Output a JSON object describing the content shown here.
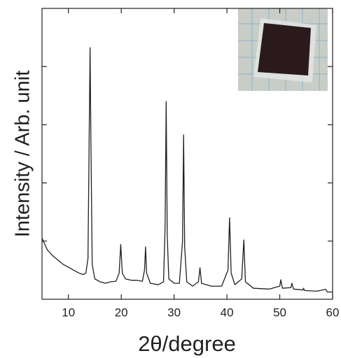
{
  "chart_data": {
    "type": "line",
    "x_label": "2θ/degree",
    "y_label": "Intensity / Arb. unit",
    "xlim": [
      5,
      60
    ],
    "xticks": [
      10,
      20,
      30,
      40,
      50,
      60
    ],
    "ylim": [
      0,
      100
    ],
    "yticks": [
      20,
      40,
      60,
      80
    ],
    "ytick_labels": false,
    "series": [
      {
        "color": "#231f20",
        "x": [
          5,
          5.5,
          6,
          7,
          8,
          9,
          10,
          11,
          12,
          12.8,
          13.3,
          13.7,
          13.95,
          14.1,
          14.25,
          14.5,
          15,
          16,
          17,
          18,
          19,
          19.6,
          19.9,
          20.2,
          20.8,
          22,
          23,
          24,
          24.4,
          24.6,
          24.8,
          25.5,
          27,
          28,
          28.3,
          28.5,
          28.7,
          29,
          30,
          31,
          31.6,
          31.8,
          32,
          32.4,
          33.5,
          34.6,
          34.9,
          35.2,
          37,
          39,
          40.2,
          40.5,
          40.8,
          41.5,
          42.8,
          43.2,
          43.5,
          45,
          48,
          50,
          50.2,
          50.5,
          52.1,
          52.3,
          52.6,
          54.4,
          54.5,
          54.7,
          57,
          58.7,
          59,
          60
        ],
        "values": [
          21,
          19,
          17,
          15,
          13.5,
          12,
          11,
          10,
          9,
          8.5,
          9,
          14,
          60,
          86.5,
          55,
          12,
          7,
          6,
          5.5,
          6,
          6.2,
          9,
          18.8,
          9,
          7,
          6.5,
          6.5,
          6.2,
          10,
          18,
          9,
          5.5,
          5,
          6,
          25,
          68,
          22,
          7,
          5.5,
          5.5,
          20,
          56.5,
          18,
          6,
          4.5,
          6,
          10.8,
          5.5,
          4.5,
          4.5,
          10,
          28,
          9,
          5,
          7,
          20.4,
          6,
          3.8,
          3.5,
          4.5,
          6.7,
          3.8,
          4,
          5.5,
          3.5,
          3.2,
          3.8,
          3,
          2.8,
          3.4,
          2.5,
          2.5
        ]
      }
    ]
  }
}
